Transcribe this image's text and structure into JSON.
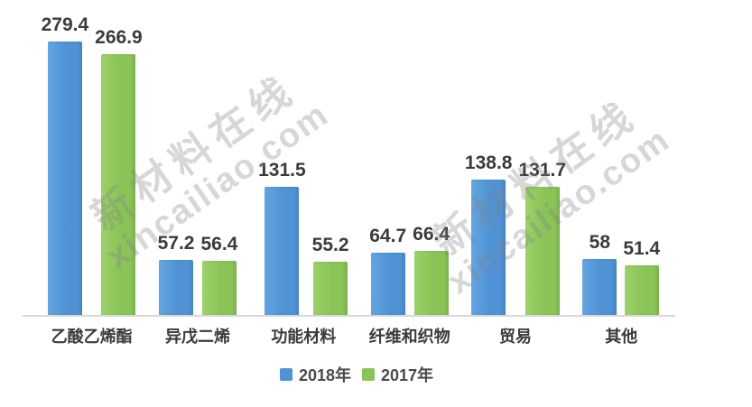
{
  "watermark": {
    "line1": "新材料在线",
    "line2": "xincailiao.com"
  },
  "colors": {
    "series_2018": "#4f93d6",
    "series_2017": "#8ac457",
    "axis_line": "#d9d9d9",
    "label_text": "#3b3b3b"
  },
  "chart_data": {
    "type": "bar",
    "title": "",
    "xlabel": "",
    "ylabel": "",
    "categories": [
      "乙酸乙烯酯",
      "异戊二烯",
      "功能材料",
      "纤维和织物",
      "贸易",
      "其他"
    ],
    "series": [
      {
        "name": "2018年",
        "color": "#4f93d6",
        "color_light": "#63a5e0",
        "values": [
          279.4,
          57.2,
          131.5,
          64.7,
          138.8,
          58
        ]
      },
      {
        "name": "2017年",
        "color": "#8ac457",
        "color_light": "#9cd169",
        "values": [
          266.9,
          56.4,
          55.2,
          66.4,
          131.7,
          51.4
        ]
      }
    ],
    "ylim": [
      0,
      300
    ],
    "grid": false,
    "axis_ticks_shown": false,
    "value_labels_shown": true,
    "legend_position": "bottom"
  }
}
